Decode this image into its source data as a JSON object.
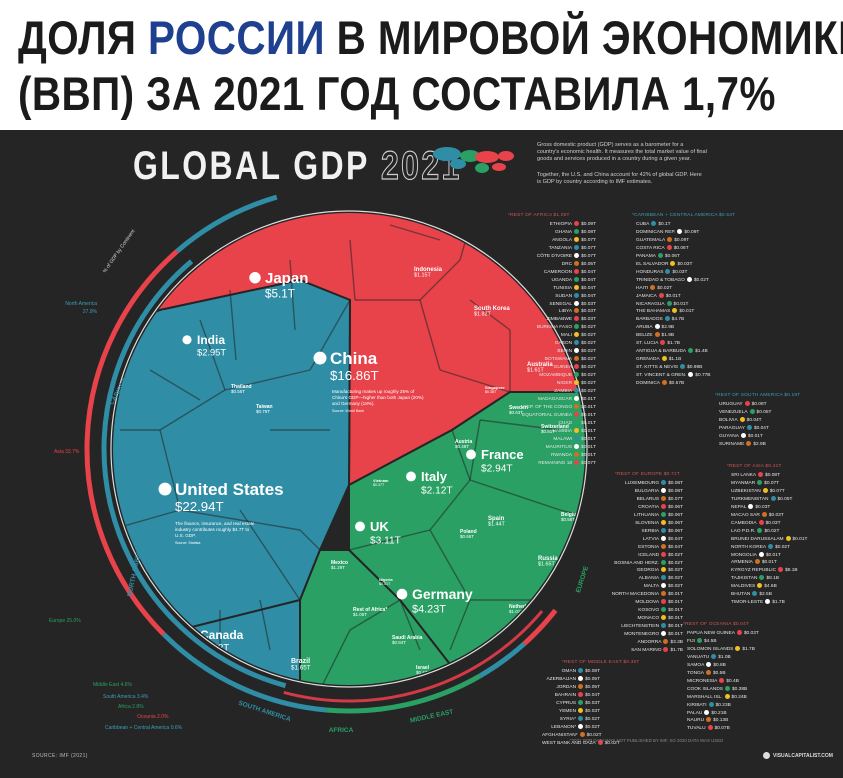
{
  "headline": {
    "line1_a": "ДОЛЯ ",
    "line1_b": "РОССИИ",
    "line1_c": " В МИРОВОЙ ЭКОНОМИКЕ",
    "line2": "(ВВП) ЗА 2021 ГОД СОСТАВИЛА 1,7%",
    "accent_color": "#1f3f8f"
  },
  "infographic": {
    "title": "GLOBAL GDP",
    "year": "2021",
    "intro_1": "Gross domestic product (GDP) serves as a barometer for a country's economic health. It measures the total market value of final goods and services produced in a country during a given year.",
    "intro_2": "Together, the U.S. and China account for 42% of global GDP. Here is GDP by country according to IMF estimates.",
    "source": "SOURCE: IMF (2021)",
    "footnote": "*2021 GDP DATA WAS NOT PUBLISHED BY IMF, SO 2020 DATA WAS USED",
    "brand": "VISUALCAPITALIST.COM",
    "colors": {
      "asia": "#e8434b",
      "north_america": "#2f8ea5",
      "europe": "#2aa064",
      "south_america": "#2f8ea5",
      "oceania": "#e8434b",
      "africa": "#2aa064",
      "middle_east": "#2aa064"
    }
  },
  "chart_data": {
    "type": "treemap",
    "title": "GLOBAL GDP 2021",
    "ring_label": "% of GDP by Continent",
    "continents": [
      {
        "name": "Asia",
        "share": 33.7,
        "label": "Asia 33.7%"
      },
      {
        "name": "North America",
        "share": 27.9,
        "label": "North America 27.9%"
      },
      {
        "name": "Europe",
        "share": 25.0,
        "label": "Europe 25.0%"
      },
      {
        "name": "Middle East",
        "share": 4.6,
        "label": "Middle East 4.6%"
      },
      {
        "name": "South America",
        "share": 3.4,
        "label": "South America 3.4%"
      },
      {
        "name": "Africa",
        "share": 2.8,
        "label": "Africa 2.8%"
      },
      {
        "name": "Oceania",
        "share": 2.0,
        "label": "Oceania 2.0%"
      },
      {
        "name": "Caribbean + Central America",
        "share": 0.6,
        "label": "Caribbean + Central America 0.6%"
      }
    ],
    "region_labels": [
      "ASIA",
      "OCEANIA",
      "EUROPE",
      "MIDDLE EAST",
      "AFRICA",
      "SOUTH AMERICA",
      "NORTH AMERICA",
      "CARIBBEAN + CENTRAL AMERICA"
    ],
    "countries_large": [
      {
        "name": "United States",
        "value": "$22.94T",
        "gdp_t": 22.94,
        "note": "The finance, insurance, and real estate industry contributes roughly $4.7T to U.S. GDP.",
        "note_source": "Source: Statista"
      },
      {
        "name": "China",
        "value": "$16.86T",
        "gdp_t": 16.86,
        "note": "Manufacturing makes up roughly 25% of China's GDP—higher than both Japan (20%) and Germany (18%).",
        "note_source": "Source: World Bank"
      },
      {
        "name": "Japan",
        "value": "$5.1T",
        "gdp_t": 5.1
      },
      {
        "name": "Germany",
        "value": "$4.23T",
        "gdp_t": 4.23
      },
      {
        "name": "UK",
        "value": "$3.11T",
        "gdp_t": 3.11
      },
      {
        "name": "India",
        "value": "$2.95T",
        "gdp_t": 2.95
      },
      {
        "name": "France",
        "value": "$2.94T",
        "gdp_t": 2.94
      },
      {
        "name": "Italy",
        "value": "$2.12T",
        "gdp_t": 2.12
      },
      {
        "name": "Canada",
        "value": "$2.02T",
        "gdp_t": 2.02
      },
      {
        "name": "South Korea",
        "value": "$1.82T",
        "gdp_t": 1.82
      },
      {
        "name": "Russia",
        "value": "$1.65T",
        "gdp_t": 1.65
      },
      {
        "name": "Brazil",
        "value": "$1.65T",
        "gdp_t": 1.65
      },
      {
        "name": "Australia",
        "value": "$1.61T",
        "gdp_t": 1.61
      },
      {
        "name": "Spain",
        "value": "$1.44T",
        "gdp_t": 1.44
      },
      {
        "name": "Indonesia",
        "value": "$1.15T",
        "gdp_t": 1.15
      },
      {
        "name": "Iran",
        "value": "$1.08T",
        "gdp_t": 1.08
      },
      {
        "name": "Mexico",
        "value": "$1.29T",
        "gdp_t": 1.29
      },
      {
        "name": "Netherlands",
        "value": "$1.01T",
        "gdp_t": 1.01
      },
      {
        "name": "Saudi Arabia",
        "value": "$0.84T",
        "gdp_t": 0.84
      },
      {
        "name": "Switzerland",
        "value": "$0.81T",
        "gdp_t": 0.81
      },
      {
        "name": "Turkey",
        "value": "$0.8T",
        "gdp_t": 0.8
      },
      {
        "name": "Taiwan",
        "value": "$0.79T",
        "gdp_t": 0.79
      },
      {
        "name": "Poland",
        "value": "$0.66T",
        "gdp_t": 0.66
      },
      {
        "name": "Sweden",
        "value": "$0.63T",
        "gdp_t": 0.63
      },
      {
        "name": "Belgium",
        "value": "$0.58T",
        "gdp_t": 0.58
      },
      {
        "name": "Thailand",
        "value": "$0.55T",
        "gdp_t": 0.55
      },
      {
        "name": "Ireland",
        "value": "$0.52T",
        "gdp_t": 0.52
      },
      {
        "name": "Argentina",
        "value": "$0.46T",
        "gdp_t": 0.46
      },
      {
        "name": "Austria",
        "value": "$0.48T",
        "gdp_t": 0.48
      },
      {
        "name": "Israel",
        "value": "$0.47T",
        "gdp_t": 0.47
      },
      {
        "name": "Nigeria",
        "value": "$0.51T",
        "gdp_t": 0.51
      },
      {
        "name": "Singapore",
        "value": "$0.38T",
        "gdp_t": 0.38
      },
      {
        "name": "Vietnam",
        "value": "$0.37T",
        "gdp_t": 0.37
      },
      {
        "name": "Rest of Africa*",
        "value": "$1.05T",
        "gdp_t": 1.05
      }
    ],
    "side_lists": [
      {
        "heading": "*REST OF AFRICA $1.05T",
        "rows": [
          "ETHIOPIA $0.09T",
          "GHANA $0.08T",
          "ANGOLA $0.07T",
          "TANZANIA $0.07T",
          "CÔTE D'IVOIRE $0.07T",
          "DRC $0.05T",
          "CAMEROON $0.04T",
          "UGANDA $0.04T",
          "TUNISIA $0.04T",
          "SUDAN $0.04T",
          "SENEGAL $0.03T",
          "LIBYA $0.03T",
          "ZIMBABWE $0.03T",
          "BURKINA FASO $0.02T",
          "MALI $0.02T",
          "GABON $0.02T",
          "BENIN $0.02T",
          "BOTSWANA $0.02T",
          "GUINEA $0.02T",
          "MOZAMBIQUE $0.02T",
          "NIGER $0.02T",
          "ZAMBIA $0.02T",
          "MADAGASCAR $0.01T",
          "REP. OF THE CONGO $0.01T",
          "EQUATORIAL GUINEA $0.01T",
          "CHAD $0.01T",
          "NAMIBIA $0.01T",
          "MALAWI $0.01T",
          "MAURITIUS $0.01T",
          "RWANDA $0.01T",
          "REMAINING 18 $0.07T"
        ]
      },
      {
        "heading": "*CARIBBEAN + CENTRAL AMERICA $0.54T",
        "rows": [
          "CUBA $0.1T",
          "DOMINICAN REP. $0.09T",
          "GUATEMALA $0.09T",
          "COSTA RICA $0.06T",
          "PANAMA $0.06T",
          "EL SALVADOR $0.03T",
          "HONDURAS $0.03T",
          "TRINIDAD & TOBAGO $0.02T",
          "HAITI $0.02T",
          "JAMAICA $0.01T",
          "NICARAGUA $0.01T",
          "THE BAHAMAS $0.01T",
          "BARBADOS $4.7B",
          "ARUBA $2.9B",
          "BELIZE $1.9B",
          "ST. LUCIA $1.7B",
          "ANTIGUA & BARBUDA $1.4B",
          "GRENADA $1.1B",
          "ST. KITTS & NEVIS $0.98B",
          "ST. VINCENT & GREN. $0.77B",
          "DOMINICA $0.57B"
        ]
      },
      {
        "heading": "*REST OF SOUTH AMERICA $0.19T",
        "rows": [
          "URUGUAY $0.06T",
          "VENEZUELA $0.05T",
          "BOLIVIA $0.04T",
          "PARAGUAY $0.04T",
          "GUYANA $0.01T",
          "SURINAME $2.9B"
        ]
      },
      {
        "heading": "*REST OF EUROPE $0.71T",
        "rows": [
          "LUXEMBOURG $0.08T",
          "BULGARIA $0.08T",
          "BELARUS $0.07T",
          "CROATIA $0.06T",
          "LITHUANIA $0.06T",
          "SLOVENIA $0.06T",
          "SERBIA $0.06T",
          "LATVIA $0.04T",
          "ESTONIA $0.04T",
          "ICELAND $0.02T",
          "BOSNIA AND HERZ. $0.02T",
          "GEORGIA $0.02T",
          "ALBANIA $0.02T",
          "MALTA $0.02T",
          "NORTH MACEDONIA $0.01T",
          "MOLDOVA $0.01T",
          "KOSOVO $0.01T",
          "MONACO $0.01T",
          "LIECHTENSTEIN $0.01T",
          "MONTENEGRO $0.01T",
          "ANDORRA $3.3B",
          "SAN MARINO $1.7B"
        ]
      },
      {
        "heading": "*REST OF ASIA $0.41T",
        "rows": [
          "SRI LANKA $0.08T",
          "MYANMAR $0.07T",
          "UZBEKISTAN $0.07T",
          "TURKMENISTAN $0.05T",
          "NEPAL $0.03T",
          "MACAO SAR $0.03T",
          "CAMBODIA $0.03T",
          "LAO P.D.R. $0.02T",
          "BRUNEI DARUSSALAM $0.01T",
          "NORTH KOREA $0.02T",
          "MONGOLIA $0.01T",
          "ARMENIA $0.01T",
          "KYRGYZ REPUBLIC $8.1B",
          "TAJIKISTAN $8.1B",
          "MALDIVES $4.6B",
          "BHUTAN $2.5B",
          "TIMOR-LESTE $1.7B"
        ]
      },
      {
        "heading": "*REST OF MIDDLE EAST $0.35T",
        "rows": [
          "OMAN $0.08T",
          "AZERBAIJAN $0.05T",
          "JORDAN $0.05T",
          "BAHRAIN $0.04T",
          "CYPRUS $0.03T",
          "YEMEN $0.03T",
          "SYRIA* $0.02T",
          "LEBANON* $0.02T",
          "AFGHANISTAN* $0.02T",
          "WEST BANK AND GAZA $0.02T"
        ]
      },
      {
        "heading": "*REST OF OCEANIA $0.04T",
        "rows": [
          "PAPUA NEW GUINEA $0.03T",
          "FIJI $4.5B",
          "SOLOMON ISLANDS $1.7B",
          "VANUATU $1.0B",
          "SAMOA $0.8B",
          "TONGA $0.5B",
          "MICRONESIA $0.4B",
          "COOK ISLANDS $0.38B",
          "MARSHALL ISL. $0.24B",
          "KIRIBATI $0.23B",
          "PALAU $0.21B",
          "NAURU $0.13B",
          "TUVALU $0.07B"
        ]
      }
    ]
  }
}
